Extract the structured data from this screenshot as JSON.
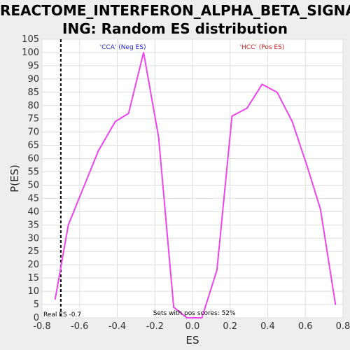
{
  "chart_data": {
    "type": "line",
    "title_lines": [
      "REACTOME_INTERFERON_ALPHA_BETA_SIGNAL",
      "ING: Random ES distribution"
    ],
    "xlabel": "ES",
    "ylabel": "P(ES)",
    "xlim": [
      -0.8,
      0.8
    ],
    "ylim": [
      0,
      105
    ],
    "x_ticks": [
      "-0.8",
      "-0.6",
      "-0.4",
      "-0.2",
      "0.0",
      "0.2",
      "0.4",
      "0.6",
      "0.8"
    ],
    "y_ticks": [
      "0",
      "5",
      "10",
      "15",
      "20",
      "25",
      "30",
      "35",
      "40",
      "45",
      "50",
      "55",
      "60",
      "65",
      "70",
      "75",
      "80",
      "85",
      "90",
      "95",
      "100",
      "105"
    ],
    "grid": true,
    "series": [
      {
        "color": "#ee44ee",
        "x": [
          -0.73,
          -0.66,
          -0.5,
          -0.41,
          -0.34,
          -0.26,
          -0.18,
          -0.1,
          -0.03,
          0.05,
          0.13,
          0.21,
          0.29,
          0.37,
          0.45,
          0.53,
          0.61,
          0.68,
          0.76
        ],
        "y": [
          7,
          35,
          63,
          74,
          77,
          100,
          68,
          4,
          0,
          0,
          18,
          76,
          79,
          88,
          85,
          74,
          57,
          41,
          5
        ]
      }
    ],
    "real_es": {
      "value": -0.7,
      "label": "Real ES -0.7"
    },
    "annotations": {
      "neg_label": "'CCA' (Neg ES)",
      "neg_color": "#2222cc",
      "pos_label": "'HCC' (Pos ES)",
      "pos_color": "#cc2222",
      "pos_scores": "Sets with pos scores: 52%"
    }
  }
}
